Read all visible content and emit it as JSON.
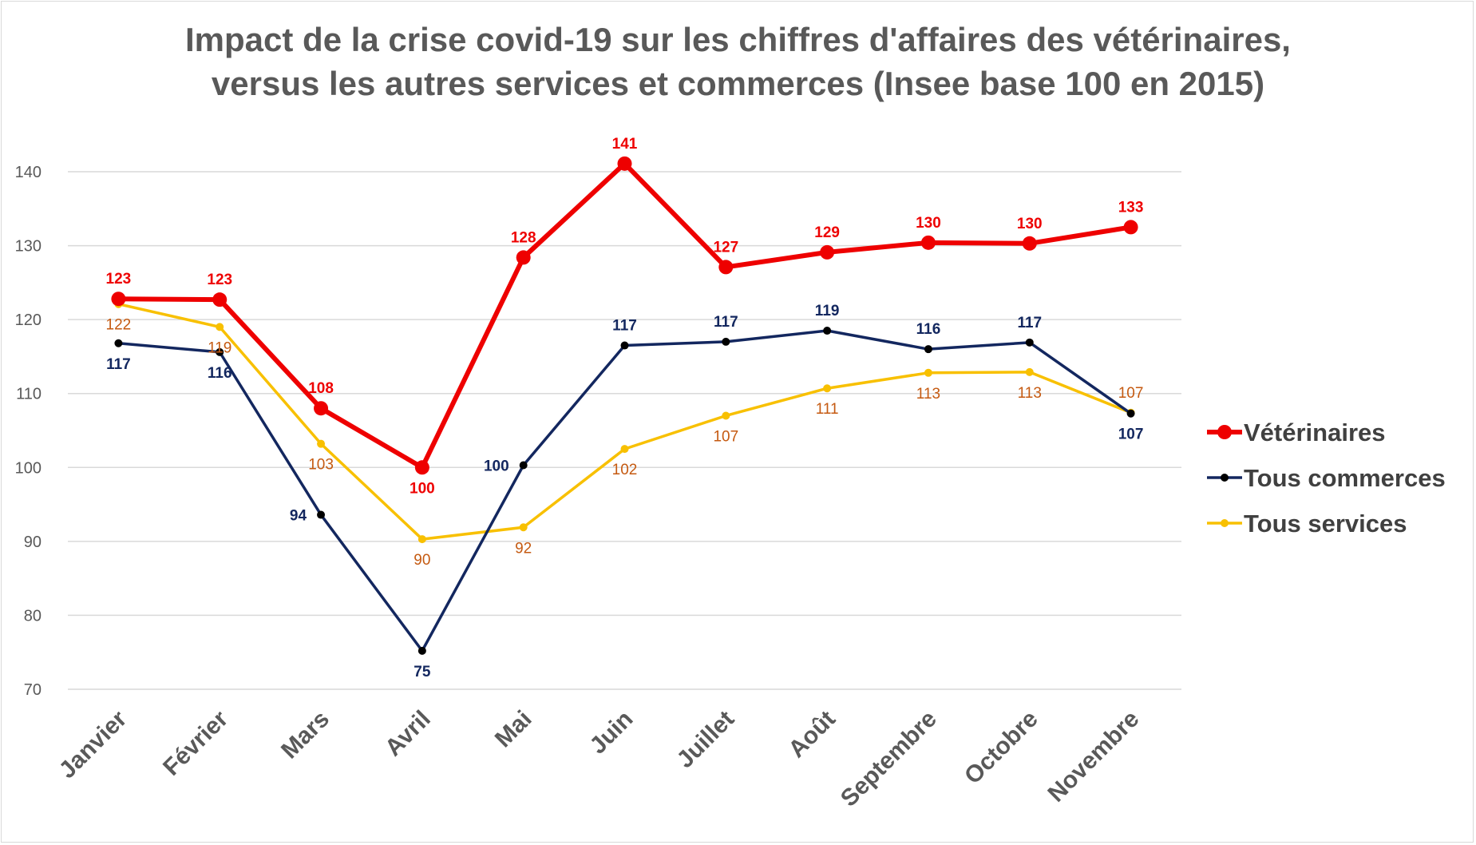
{
  "chart_data": {
    "type": "line",
    "title_lines": [
      "Impact de la crise covid-19 sur les chiffres d'affaires des vétérinaires,",
      "versus les autres services et commerces (Insee base 100 en 2015)"
    ],
    "categories": [
      "Janvier",
      "Février",
      "Mars",
      "Avril",
      "Mai",
      "Juin",
      "Juillet",
      "Août",
      "Septembre",
      "Octobre",
      "Novembre"
    ],
    "ylim": [
      70,
      140
    ],
    "yticks": [
      70,
      80,
      90,
      100,
      110,
      120,
      130,
      140
    ],
    "grid": true,
    "legend_position": "right",
    "series": [
      {
        "name": "Vétérinaires",
        "color": "#ee0000",
        "label_color": "#ee0000",
        "values": [
          122.8,
          122.7,
          108.0,
          100.0,
          128.4,
          141.1,
          127.1,
          129.1,
          130.4,
          130.3,
          132.5
        ],
        "labels": [
          "123",
          "123",
          "108",
          "100",
          "128",
          "141",
          "127",
          "129",
          "130",
          "130",
          "133"
        ],
        "label_pos": [
          "above",
          "above",
          "above",
          "below",
          "above",
          "above",
          "above",
          "above",
          "above",
          "above",
          "above"
        ]
      },
      {
        "name": "Tous commerces",
        "color": "#13275f",
        "label_color": "#13275f",
        "values": [
          116.8,
          115.6,
          93.6,
          75.2,
          100.3,
          116.5,
          117.0,
          118.5,
          116.0,
          116.9,
          107.3
        ],
        "labels": [
          "117",
          "116",
          "94",
          "75",
          "100",
          "117",
          "117",
          "119",
          "116",
          "117",
          "107"
        ],
        "label_pos": [
          "below",
          "below",
          "left",
          "below",
          "left",
          "above",
          "above",
          "above",
          "above",
          "above",
          "below"
        ]
      },
      {
        "name": "Tous services",
        "color": "#f8c000",
        "label_color": "#c55a11",
        "values": [
          122.1,
          119.0,
          103.2,
          90.3,
          91.9,
          102.5,
          107.0,
          110.7,
          112.8,
          112.9,
          107.4
        ],
        "labels": [
          "122",
          "119",
          "103",
          "90",
          "92",
          "102",
          "107",
          "111",
          "113",
          "113",
          "107"
        ],
        "label_pos": [
          "below",
          "below",
          "below",
          "below",
          "below",
          "below",
          "below",
          "below",
          "below",
          "below",
          "above"
        ]
      }
    ]
  }
}
